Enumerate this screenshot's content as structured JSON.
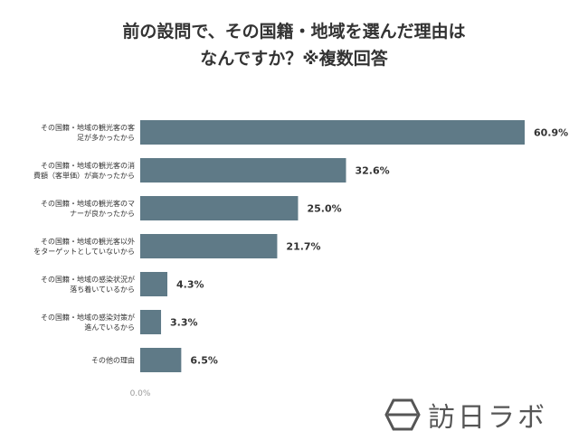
{
  "title_line1": "前の設問で、その国籍・地域を選んだ理由は",
  "title_line2": "なんですか？※複数回答",
  "brand": "訪日ラボ",
  "brand_icon": "hexagon-logo-icon",
  "colors": {
    "bar": "#5f7a87",
    "text": "#333333",
    "axis": "#999999"
  },
  "chart_data": {
    "type": "bar",
    "orientation": "horizontal",
    "unit": "%",
    "categories": [
      [
        "その国籍・地域の観光客の客",
        "足が多かったから"
      ],
      [
        "その国籍・地域の観光客の消",
        "費額（客単価）が高かったから"
      ],
      [
        "その国籍・地域の観光客のマ",
        "ナーが良かったから"
      ],
      [
        "その国籍・地域の観光客以外",
        "をターゲットとしていないから"
      ],
      [
        "その国籍・地域の感染状況が",
        "落ち着いているから"
      ],
      [
        "その国籍・地域の感染対策が",
        "進んでいるから"
      ],
      [
        "その他の理由"
      ]
    ],
    "values": [
      60.9,
      32.6,
      25.0,
      21.7,
      4.3,
      3.3,
      6.5
    ],
    "value_labels": [
      "60.9%",
      "32.6%",
      "25.0%",
      "21.7%",
      "4.3%",
      "3.3%",
      "6.5%"
    ],
    "x_axis_label": "0.0%",
    "xlim": [
      0,
      60.9
    ]
  }
}
